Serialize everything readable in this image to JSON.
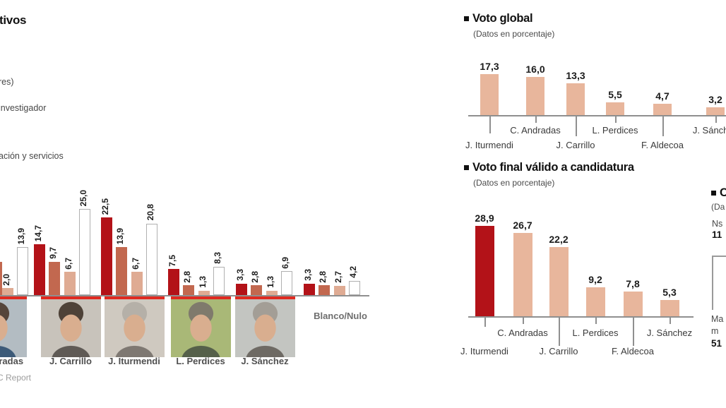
{
  "canvas": {
    "bg": "#ffffff"
  },
  "palette": {
    "dark_red": "#b31218",
    "terracotta": "#c2684f",
    "light_salmon": "#dfab93",
    "white_bar_border": "#b0b0b0",
    "salmon_right": "#e8b69c",
    "axis_gray": "#8f8f8f",
    "photo_rule_red": "#e02a21"
  },
  "bullet": "■",
  "chart_data": [
    {
      "id": "voto-por-colectivos",
      "type": "bar",
      "title_fragment": "tivos",
      "legend_fragments": [
        "res)",
        "investigador",
        "ación y servicios"
      ],
      "unit": "porcentaje",
      "categories": [
        "C. Andradas",
        "J. Carrillo",
        "J. Iturmendi",
        "L. Perdices",
        "J. Sánchez",
        "Blanco/Nulo"
      ],
      "series": [
        {
          "name": "colectivo-1-dark-red",
          "color": "#b31218",
          "values": [
            null,
            14.7,
            22.5,
            7.5,
            3.3,
            3.3
          ]
        },
        {
          "name": "colectivo-2-terracotta",
          "color": "#c2684f",
          "values": [
            null,
            9.7,
            13.9,
            2.8,
            2.8,
            2.8
          ]
        },
        {
          "name": "colectivo-3-light-salmon",
          "color": "#dfab93",
          "values": [
            2.0,
            6.7,
            6.7,
            1.3,
            1.3,
            2.7
          ]
        },
        {
          "name": "colectivo-4-white",
          "color": "#ffffff",
          "values": [
            13.9,
            25.0,
            20.8,
            8.3,
            6.9,
            4.2
          ]
        }
      ],
      "blanco_label": "Blanco/Nulo",
      "source_fragment": "C Report",
      "legend_position": "top-left",
      "grid": false
    },
    {
      "id": "voto-global",
      "type": "bar",
      "title": "Voto global",
      "subtitle": "(Datos en porcentaje)",
      "categories": [
        "J. Iturmendi",
        "C. Andradas",
        "J. Carrillo",
        "L. Perdices",
        "F. Aldecoa",
        "J. Sánchez"
      ],
      "values": [
        17.3,
        16.0,
        13.3,
        5.5,
        4.7,
        3.2
      ],
      "bar_color": "#e8b69c",
      "grid": false
    },
    {
      "id": "voto-final-valido-a-candidatura",
      "type": "bar",
      "title": "Voto final válido a candidatura",
      "subtitle": "(Datos en porcentaje)",
      "categories": [
        "J. Iturmendi",
        "C. Andradas",
        "J. Carrillo",
        "L. Perdices",
        "F. Aldecoa",
        "J. Sánchez"
      ],
      "values": [
        28.9,
        26.7,
        22.2,
        9.2,
        7.8,
        5.3
      ],
      "bar_color": "#e8b69c",
      "highlight_index": 0,
      "highlight_color": "#b31218",
      "grid": false
    }
  ],
  "right_panel_fragments": {
    "title_fragment": "C",
    "subtitle_fragment": "(Da",
    "line1_fragment": "Ns",
    "line2_fragment": "11",
    "label_line1_fragment": "Ma",
    "label_line2_fragment": "m",
    "label_line3_fragment": "51"
  }
}
